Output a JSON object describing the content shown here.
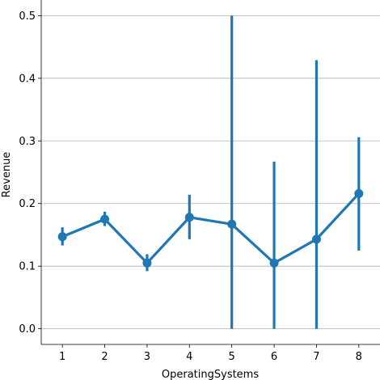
{
  "chart_data": {
    "type": "line",
    "xlabel": "OperatingSystems",
    "ylabel": "Revenue",
    "x": [
      1,
      2,
      3,
      4,
      5,
      6,
      7,
      8
    ],
    "x_tick_labels": [
      "1",
      "2",
      "3",
      "4",
      "5",
      "6",
      "7",
      "8"
    ],
    "ylim": [
      -0.025,
      0.525
    ],
    "y_ticks": [
      0.0,
      0.1,
      0.2,
      0.3,
      0.4,
      0.5
    ],
    "y_tick_labels": [
      "0.0",
      "0.1",
      "0.2",
      "0.3",
      "0.4",
      "0.5"
    ],
    "grid": "horizontal",
    "series": [
      {
        "values": [
          0.147,
          0.175,
          0.105,
          0.178,
          0.167,
          0.105,
          0.143,
          0.216
        ],
        "error_low": [
          0.133,
          0.164,
          0.092,
          0.143,
          0.0,
          0.0,
          0.0,
          0.125
        ],
        "error_high": [
          0.162,
          0.187,
          0.119,
          0.214,
          0.5,
          0.267,
          0.429,
          0.306
        ],
        "color": "#1f77b4"
      }
    ],
    "grid_color": "#b0b0b0",
    "axis_color": "#000000"
  }
}
